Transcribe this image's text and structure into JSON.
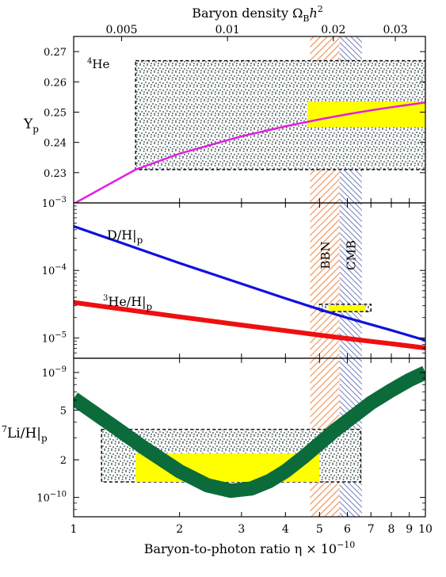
{
  "chart_data": {
    "type": "line",
    "top_axis": {
      "label_text": "Baryon density Ω",
      "label_sub": "B",
      "label_h": "h",
      "label_sup": "2",
      "ticks": [
        {
          "value": 0.005,
          "label": "0.005"
        },
        {
          "value": 0.01,
          "label": "0.01"
        },
        {
          "value": 0.02,
          "label": "0.02"
        },
        {
          "value": 0.03,
          "label": "0.03"
        }
      ],
      "omega_per_eta10": 0.003653
    },
    "bottom_axis": {
      "label": "Baryon-to-photon ratio η × 10",
      "label_sup": "−10",
      "scale": "log",
      "xlim": [
        1,
        10
      ],
      "ticks": [
        {
          "value": 1,
          "label": "1"
        },
        {
          "value": 2,
          "label": "2"
        },
        {
          "value": 3,
          "label": "3"
        },
        {
          "value": 4,
          "label": "4"
        },
        {
          "value": 5,
          "label": "5"
        },
        {
          "value": 6,
          "label": "6"
        },
        {
          "value": 7,
          "label": "7"
        },
        {
          "value": 8,
          "label": "8"
        },
        {
          "value": 9,
          "label": "9"
        },
        {
          "value": 10,
          "label": "10"
        }
      ]
    },
    "bands": [
      {
        "name": "BBN",
        "xmin": 4.7,
        "xmax": 5.7,
        "color": "#f0a070"
      },
      {
        "name": "CMB",
        "xmin": 5.7,
        "xmax": 6.6,
        "color": "#3a4aa0"
      }
    ],
    "panels": [
      {
        "id": "helium4",
        "ylabel": "Y",
        "ylabel_sub": "p",
        "species_label": "He",
        "species_sup": "4",
        "scale": "linear",
        "ylim": [
          0.22,
          0.275
        ],
        "yticks": [
          {
            "value": 0.23,
            "label": "0.23"
          },
          {
            "value": 0.24,
            "label": "0.24"
          },
          {
            "value": 0.25,
            "label": "0.25"
          },
          {
            "value": 0.26,
            "label": "0.26"
          },
          {
            "value": 0.27,
            "label": "0.27"
          }
        ],
        "series": [
          {
            "color": "#e020e0",
            "x": [
              1,
              1.5,
              2,
              3,
              4,
              5,
              6,
              7,
              8,
              10
            ],
            "y": [
              0.2197,
              0.231,
              0.2363,
              0.242,
              0.2453,
              0.2476,
              0.2493,
              0.2506,
              0.2516,
              0.2532
            ]
          }
        ],
        "observations": [
          {
            "kind": "dotted-box",
            "xmin": 1.5,
            "xmax": 10,
            "ymin": 0.231,
            "ymax": 0.267
          },
          {
            "kind": "yellow-box",
            "xmin": 4.62,
            "xmax": 10,
            "ymin": 0.245,
            "ymax": 0.2535
          }
        ]
      },
      {
        "id": "deuterium-helium3",
        "scale": "log",
        "ylim": [
          5e-06,
          0.001
        ],
        "yticks": [
          {
            "value": 0.001,
            "base": "10",
            "exp": "−3"
          },
          {
            "value": 0.0001,
            "base": "10",
            "exp": "−4"
          },
          {
            "value": 1e-05,
            "base": "10",
            "exp": "−5"
          }
        ],
        "series": [
          {
            "name": "D/H|",
            "name_sub": "p",
            "color": "#1010e0",
            "x": [
              1,
              2,
              3,
              4,
              5,
              6,
              7,
              8,
              10
            ],
            "y": [
              0.00045,
              0.000128,
              6.35e-05,
              3.85e-05,
              2.65e-05,
              1.98e-05,
              1.58e-05,
              1.3e-05,
              9.2e-06
            ]
          },
          {
            "name": "He/H|",
            "name_pre_sup": "3",
            "name_sub": "p",
            "color": "#ee1010",
            "x": [
              1,
              2,
              3,
              4,
              5,
              6,
              7,
              8,
              10
            ],
            "y": [
              3.35e-05,
              2.05e-05,
              1.55e-05,
              1.28e-05,
              1.1e-05,
              9.8e-06,
              8.9e-06,
              8.2e-06,
              7.1e-06
            ]
          }
        ],
        "observations": [
          {
            "kind": "dotted-box",
            "xmin": 5.0,
            "xmax": 7.0,
            "ymin": 2.45e-05,
            "ymax": 3.15e-05
          },
          {
            "kind": "yellow-box",
            "xmin": 5.3,
            "xmax": 6.75,
            "ymin": 2.5e-05,
            "ymax": 3e-05
          }
        ]
      },
      {
        "id": "lithium7",
        "ylabel_pre_sup": "7",
        "ylabel": "Li/H|",
        "ylabel_sub": "p",
        "scale": "log",
        "ylim": [
          7e-11,
          1.3e-09
        ],
        "yticks": [
          {
            "value": 1e-09,
            "base": "10",
            "exp": "−9"
          },
          {
            "value": 5e-10,
            "label": "5"
          },
          {
            "value": 2e-10,
            "label": "2"
          },
          {
            "value": 1e-10,
            "base": "10",
            "exp": "−10"
          }
        ],
        "series": [
          {
            "color": "#0b6b3a",
            "x": [
              1,
              1.3,
              1.6,
              2,
              2.4,
              2.8,
              3.2,
              3.6,
              4,
              4.5,
              5,
              5.5,
              6,
              7,
              8,
              9,
              10
            ],
            "y": [
              6.2e-10,
              3.7e-10,
              2.45e-10,
              1.62e-10,
              1.25e-10,
              1.13e-10,
              1.18e-10,
              1.35e-10,
              1.62e-10,
              2.1e-10,
              2.7e-10,
              3.4e-10,
              4.1e-10,
              5.7e-10,
              7.2e-10,
              8.7e-10,
              1e-09
            ]
          }
        ],
        "observations": [
          {
            "kind": "dotted-box",
            "xmin": 1.2,
            "xmax": 6.55,
            "ymin": 1.33e-10,
            "ymax": 3.5e-10
          },
          {
            "kind": "yellow-box",
            "xmin": 1.5,
            "xmax": 5.0,
            "ymin": 1.33e-10,
            "ymax": 2.25e-10
          }
        ]
      }
    ]
  }
}
